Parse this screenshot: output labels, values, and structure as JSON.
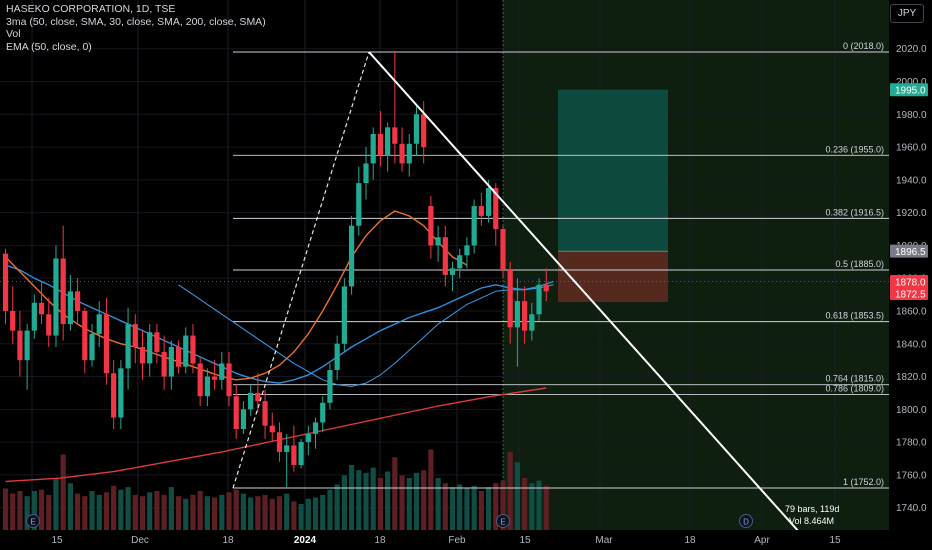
{
  "chart_data": {
    "type": "candlestick",
    "title": "HASEKO CORPORATION, 1D, TSE",
    "indicators": [
      "3ma (50, close, SMA, 30, close, SMA, 200, close, SMA)",
      "Vol",
      "EMA (50, close, 0)"
    ],
    "currency": "JPY",
    "y_range": [
      1730,
      2030
    ],
    "y_ticks": [
      1740,
      1760,
      1780,
      1800,
      1820,
      1840,
      1860,
      1880,
      1900,
      1920,
      1940,
      1960,
      1980,
      2000,
      2020
    ],
    "y_tick_labels": [
      "1740.0",
      "1760.0",
      "1780.0",
      "1800.0",
      "1820.0",
      "1840.0",
      "1860.0",
      "1880.0",
      "1900.0",
      "1920.0",
      "1940.0",
      "1960.0",
      "1980.0",
      "2000.0",
      "2020.0"
    ],
    "x_tick_labels": [
      "15",
      "Dec",
      "18",
      "2024",
      "18",
      "Feb",
      "15",
      "Mar",
      "18",
      "Apr",
      "15"
    ],
    "fib_levels": [
      {
        "ratio": "0",
        "price": 2018.0,
        "label": "0 (2018.0)"
      },
      {
        "ratio": "0.236",
        "price": 1955.0,
        "label": "0.236 (1955.0)"
      },
      {
        "ratio": "0.382",
        "price": 1916.5,
        "label": "0.382 (1916.5)"
      },
      {
        "ratio": "0.5",
        "price": 1885.0,
        "label": "0.5 (1885.0)"
      },
      {
        "ratio": "0.618",
        "price": 1853.5,
        "label": "0.618 (1853.5)"
      },
      {
        "ratio": "0.764",
        "price": 1815.0,
        "label": "0.764 (1815.0)"
      },
      {
        "ratio": "0.786",
        "price": 1809.0,
        "label": "0.786 (1809.0)"
      },
      {
        "ratio": "1",
        "price": 1752.0,
        "label": "1 (1752.0)"
      }
    ],
    "price_tags": [
      {
        "label": "1995.0",
        "price": 1995.0,
        "color": "#22ab94"
      },
      {
        "label": "1896.5",
        "price": 1896.5,
        "color": "#787b86"
      },
      {
        "label": "1878.0",
        "price": 1878.0,
        "color": "#f23645"
      },
      {
        "label": "1872.5",
        "price": 1872.5,
        "color": "#f23645"
      }
    ],
    "position_tool": {
      "target": 1995.0,
      "entry": 1896.5,
      "stop": 1872.5
    },
    "measure_label": [
      "79 bars, 119d",
      "Vol 8.464M"
    ],
    "event_markers": [
      "E",
      "E",
      "D"
    ],
    "candles": [
      [
        1895,
        1898,
        1852,
        1860
      ],
      [
        1860,
        1875,
        1840,
        1848
      ],
      [
        1848,
        1860,
        1820,
        1830
      ],
      [
        1830,
        1852,
        1812,
        1848
      ],
      [
        1848,
        1870,
        1843,
        1865
      ],
      [
        1865,
        1878,
        1852,
        1858
      ],
      [
        1858,
        1868,
        1838,
        1845
      ],
      [
        1845,
        1900,
        1838,
        1892
      ],
      [
        1892,
        1912,
        1842,
        1852
      ],
      [
        1852,
        1882,
        1848,
        1872
      ],
      [
        1872,
        1880,
        1852,
        1860
      ],
      [
        1860,
        1862,
        1822,
        1830
      ],
      [
        1830,
        1852,
        1826,
        1846
      ],
      [
        1846,
        1866,
        1838,
        1858
      ],
      [
        1858,
        1868,
        1815,
        1822
      ],
      [
        1822,
        1830,
        1788,
        1795
      ],
      [
        1795,
        1830,
        1788,
        1825
      ],
      [
        1825,
        1862,
        1812,
        1852
      ],
      [
        1852,
        1858,
        1828,
        1838
      ],
      [
        1838,
        1848,
        1818,
        1828
      ],
      [
        1828,
        1852,
        1820,
        1847
      ],
      [
        1847,
        1852,
        1828,
        1835
      ],
      [
        1835,
        1845,
        1812,
        1820
      ],
      [
        1820,
        1842,
        1812,
        1838
      ],
      [
        1838,
        1842,
        1822,
        1826
      ],
      [
        1826,
        1850,
        1822,
        1845
      ],
      [
        1845,
        1852,
        1822,
        1828
      ],
      [
        1828,
        1832,
        1802,
        1808
      ],
      [
        1808,
        1825,
        1802,
        1820
      ],
      [
        1820,
        1830,
        1812,
        1818
      ],
      [
        1818,
        1835,
        1812,
        1828
      ],
      [
        1828,
        1835,
        1802,
        1808
      ],
      [
        1808,
        1815,
        1782,
        1788
      ],
      [
        1788,
        1805,
        1785,
        1800
      ],
      [
        1800,
        1815,
        1796,
        1810
      ],
      [
        1810,
        1822,
        1798,
        1805
      ],
      [
        1805,
        1812,
        1782,
        1790
      ],
      [
        1790,
        1798,
        1780,
        1786
      ],
      [
        1786,
        1792,
        1768,
        1774
      ],
      [
        1774,
        1785,
        1752,
        1778
      ],
      [
        1778,
        1790,
        1762,
        1766
      ],
      [
        1766,
        1782,
        1764,
        1780
      ],
      [
        1780,
        1790,
        1772,
        1785
      ],
      [
        1785,
        1795,
        1776,
        1792
      ],
      [
        1792,
        1808,
        1786,
        1804
      ],
      [
        1804,
        1828,
        1800,
        1824
      ],
      [
        1824,
        1845,
        1818,
        1840
      ],
      [
        1840,
        1880,
        1835,
        1875
      ],
      [
        1875,
        1918,
        1870,
        1912
      ],
      [
        1912,
        1948,
        1906,
        1938
      ],
      [
        1938,
        1960,
        1928,
        1950
      ],
      [
        1950,
        1972,
        1940,
        1968
      ],
      [
        1968,
        1982,
        1948,
        1955
      ],
      [
        1955,
        1975,
        1945,
        1972
      ],
      [
        1972,
        2018,
        1950,
        1962
      ],
      [
        1962,
        1972,
        1945,
        1950
      ],
      [
        1950,
        1968,
        1942,
        1962
      ],
      [
        1962,
        1985,
        1955,
        1980
      ],
      [
        1980,
        1988,
        1950,
        1960
      ],
      [
        1924,
        1930,
        1892,
        1900
      ],
      [
        1900,
        1912,
        1890,
        1905
      ],
      [
        1905,
        1912,
        1875,
        1882
      ],
      [
        1882,
        1890,
        1872,
        1886
      ],
      [
        1886,
        1898,
        1880,
        1894
      ],
      [
        1894,
        1905,
        1886,
        1900
      ],
      [
        1900,
        1928,
        1895,
        1924
      ],
      [
        1924,
        1932,
        1912,
        1918
      ],
      [
        1918,
        1940,
        1914,
        1935
      ],
      [
        1935,
        1938,
        1900,
        1910
      ],
      [
        1910,
        1912,
        1880,
        1885
      ],
      [
        1885,
        1890,
        1840,
        1850
      ],
      [
        1850,
        1880,
        1826,
        1866
      ],
      [
        1866,
        1875,
        1840,
        1848
      ],
      [
        1848,
        1865,
        1842,
        1858
      ],
      [
        1858,
        1880,
        1854,
        1876
      ],
      [
        1876,
        1886,
        1866,
        1872
      ]
    ],
    "volumes": [
      0.32,
      0.28,
      0.3,
      0.26,
      0.3,
      0.31,
      0.27,
      0.4,
      0.58,
      0.36,
      0.28,
      0.26,
      0.3,
      0.27,
      0.29,
      0.34,
      0.31,
      0.33,
      0.27,
      0.26,
      0.29,
      0.3,
      0.27,
      0.33,
      0.26,
      0.24,
      0.27,
      0.3,
      0.26,
      0.25,
      0.27,
      0.29,
      0.31,
      0.28,
      0.25,
      0.26,
      0.27,
      0.24,
      0.26,
      0.28,
      0.22,
      0.2,
      0.24,
      0.25,
      0.27,
      0.31,
      0.35,
      0.42,
      0.5,
      0.46,
      0.44,
      0.48,
      0.4,
      0.45,
      0.56,
      0.42,
      0.4,
      0.44,
      0.46,
      0.62,
      0.4,
      0.36,
      0.33,
      0.35,
      0.32,
      0.34,
      0.3,
      0.33,
      0.36,
      0.38,
      0.6,
      0.52,
      0.4,
      0.36,
      0.38,
      0.34
    ],
    "sma50": [
      1888,
      1885,
      1880,
      1876,
      1871,
      1866,
      1862,
      1858,
      1854,
      1850,
      1846,
      1842,
      1838,
      1834,
      1830,
      1826,
      1822,
      1819,
      1817,
      1816,
      1818,
      1821,
      1826,
      1832,
      1838,
      1843,
      1848,
      1852,
      1856,
      1859,
      1862,
      1866,
      1870,
      1874,
      1876,
      1874,
      1873,
      1875,
      1878
    ],
    "sma30": [
      1893,
      1884,
      1875,
      1866,
      1858,
      1852,
      1847,
      1843,
      1840,
      1838,
      1835,
      1832,
      1829,
      1826,
      1823,
      1820,
      1818,
      1819,
      1822,
      1827,
      1835,
      1846,
      1860,
      1876,
      1893,
      1906,
      1915,
      1921,
      1918,
      1912,
      1902,
      1893,
      1888
    ],
    "sma200": [
      1756,
      1758,
      1762,
      1768,
      1774,
      1781,
      1788,
      1795,
      1802,
      1808,
      1813
    ],
    "ema50": [
      1876,
      1870,
      1864,
      1858,
      1852,
      1846,
      1840,
      1834,
      1828,
      1823,
      1818,
      1815,
      1814,
      1816,
      1821,
      1828,
      1836,
      1844,
      1852,
      1858,
      1864,
      1868,
      1872,
      1873,
      1873,
      1874,
      1876
    ]
  }
}
